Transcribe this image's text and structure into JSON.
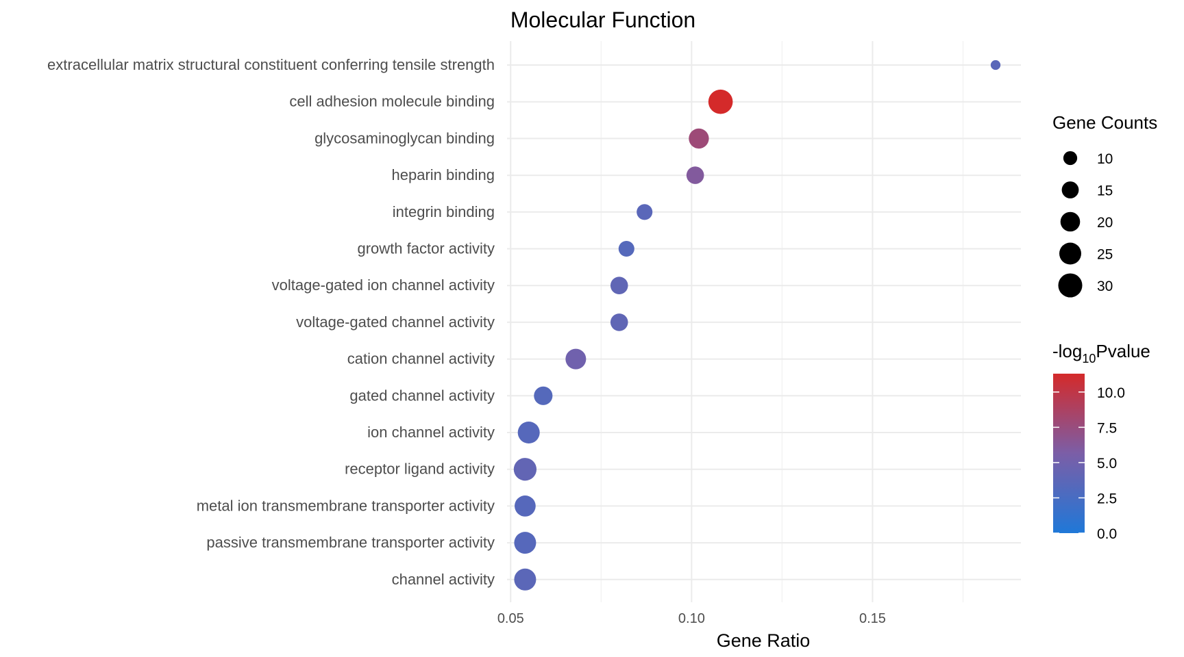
{
  "chart_data": {
    "type": "scatter",
    "title": "Molecular Function",
    "xlabel": "Gene Ratio",
    "ylabel": "",
    "xlim": [
      0.049,
      0.191
    ],
    "xticks": [
      0.05,
      0.1,
      0.15
    ],
    "xtick_labels": [
      "0.05",
      "0.10",
      "0.15"
    ],
    "grid": true,
    "categories": [
      "extracellular matrix structural constituent conferring tensile strength",
      "cell adhesion molecule binding",
      "glycosaminoglycan binding",
      "heparin binding",
      "integrin binding",
      "growth factor activity",
      "voltage-gated ion channel activity",
      "voltage-gated channel activity",
      "cation channel activity",
      "gated channel activity",
      "ion channel activity",
      "receptor ligand activity",
      "metal ion transmembrane transporter activity",
      "passive transmembrane transporter activity",
      "channel activity"
    ],
    "points": [
      {
        "category": "extracellular matrix structural constituent conferring tensile strength",
        "gene_ratio": 0.184,
        "count": 5,
        "neg_log10_p": 3.6
      },
      {
        "category": "cell adhesion molecule binding",
        "gene_ratio": 0.108,
        "count": 31,
        "neg_log10_p": 11.3
      },
      {
        "category": "glycosaminoglycan binding",
        "gene_ratio": 0.102,
        "count": 21,
        "neg_log10_p": 7.8
      },
      {
        "category": "heparin binding",
        "gene_ratio": 0.101,
        "count": 16,
        "neg_log10_p": 6.1
      },
      {
        "category": "integrin binding",
        "gene_ratio": 0.087,
        "count": 13,
        "neg_log10_p": 3.6
      },
      {
        "category": "growth factor activity",
        "gene_ratio": 0.082,
        "count": 13,
        "neg_log10_p": 3.3
      },
      {
        "category": "voltage-gated ion channel activity",
        "gene_ratio": 0.08,
        "count": 16,
        "neg_log10_p": 4.0
      },
      {
        "category": "voltage-gated channel activity",
        "gene_ratio": 0.08,
        "count": 16,
        "neg_log10_p": 4.0
      },
      {
        "category": "cation channel activity",
        "gene_ratio": 0.068,
        "count": 22,
        "neg_log10_p": 5.0
      },
      {
        "category": "gated channel activity",
        "gene_ratio": 0.059,
        "count": 18,
        "neg_log10_p": 3.3
      },
      {
        "category": "ion channel activity",
        "gene_ratio": 0.055,
        "count": 25,
        "neg_log10_p": 3.4
      },
      {
        "category": "receptor ligand activity",
        "gene_ratio": 0.054,
        "count": 27,
        "neg_log10_p": 4.1
      },
      {
        "category": "metal ion transmembrane transporter activity",
        "gene_ratio": 0.054,
        "count": 23,
        "neg_log10_p": 3.4
      },
      {
        "category": "passive transmembrane transporter activity",
        "gene_ratio": 0.054,
        "count": 25,
        "neg_log10_p": 3.4
      },
      {
        "category": "channel activity",
        "gene_ratio": 0.054,
        "count": 25,
        "neg_log10_p": 3.7
      }
    ],
    "size_legend": {
      "title": "Gene Counts",
      "values": [
        10,
        15,
        20,
        25,
        30
      ],
      "labels": [
        "10",
        "15",
        "20",
        "25",
        "30"
      ]
    },
    "color_legend": {
      "title_prefix": "-log",
      "title_subscript": "10",
      "title_suffix": "Pvalue",
      "min": 0,
      "max": 11.3,
      "ticks": [
        0,
        2.5,
        5,
        7.5,
        10
      ],
      "tick_labels": [
        "0.0",
        "2.5",
        "5.0",
        "7.5",
        "10.0"
      ],
      "low_color": "#1f78d8",
      "mid_color": "#7b5ea7",
      "high_color": "#d42a2a"
    },
    "legend_placement": "right"
  }
}
